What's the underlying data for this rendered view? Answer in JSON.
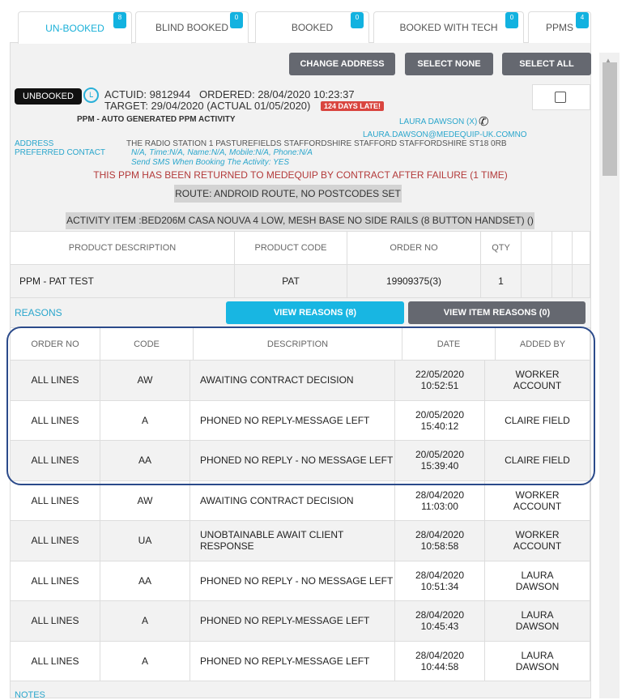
{
  "tabs": [
    {
      "label": "UN-BOOKED",
      "count": "8"
    },
    {
      "label": "BLIND BOOKED",
      "count": "0"
    },
    {
      "label": "BOOKED",
      "count": "0"
    },
    {
      "label": "BOOKED WITH TECH",
      "count": "0"
    },
    {
      "label": "PPMS",
      "count": "4"
    }
  ],
  "toolbar": {
    "change_address": "CHANGE ADDRESS",
    "select_none": "SELECT NONE",
    "select_all": "SELECT ALL"
  },
  "activity": {
    "status": "UNBOOKED",
    "line1": "ACTUID: 9812944   ORDERED: 28/04/2020 10:23:37",
    "line2": "TARGET: 29/04/2020 (ACTUAL 01/05/2020)",
    "late": "124 DAYS LATE!",
    "type": "PPM - AUTO GENERATED PPM ACTIVITY",
    "contact_name": "LAURA DAWSON (X)",
    "contact_email": "LAURA.DAWSON@MEDEQUIP-UK.COMNO",
    "address_label": "ADDRESS",
    "address": "THE RADIO STATION 1 PASTUREFIELDS STAFFORDSHIRE STAFFORD STAFFORDSHIRE ST18 0RB",
    "preferred_label": "PREFERRED CONTACT",
    "preferred": "N/A, Time:N/A, Name:N/A, Mobile:N/A, Phone:N/A",
    "sms": "Send SMS When Booking The Activity: YES",
    "warning": "THIS PPM HAS BEEN RETURNED TO MEDEQUIP BY CONTRACT AFTER FAILURE (1 TIME)",
    "route": "ROUTE: ANDROID ROUTE, NO POSTCODES SET",
    "item": "ACTIVITY ITEM :BED206M CASA NOUVA 4 LOW, MESH BASE NO SIDE RAILS (8 BUTTON HANDSET) ()"
  },
  "products": {
    "headers": [
      "PRODUCT DESCRIPTION",
      "PRODUCT CODE",
      "ORDER NO",
      "QTY"
    ],
    "row": [
      "PPM - PAT TEST",
      "PAT",
      "19909375(3)",
      "1"
    ]
  },
  "reasons": {
    "label": "REASONS",
    "view_reasons": "VIEW REASONS (8)",
    "view_item_reasons": "VIEW ITEM REASONS (0)",
    "headers": [
      "ORDER NO",
      "CODE",
      "DESCRIPTION",
      "DATE",
      "ADDED BY"
    ],
    "rows": [
      [
        "ALL LINES",
        "AW",
        "AWAITING CONTRACT DECISION",
        "22/05/2020",
        "10:52:51",
        "WORKER ACCOUNT"
      ],
      [
        "ALL LINES",
        "A",
        "PHONED NO REPLY-MESSAGE LEFT",
        "20/05/2020",
        "15:40:12",
        "CLAIRE FIELD"
      ],
      [
        "ALL LINES",
        "AA",
        "PHONED NO REPLY - NO MESSAGE LEFT",
        "20/05/2020",
        "15:39:40",
        "CLAIRE FIELD"
      ],
      [
        "ALL LINES",
        "AW",
        "AWAITING CONTRACT DECISION",
        "28/04/2020",
        "11:03:00",
        "WORKER ACCOUNT"
      ],
      [
        "ALL LINES",
        "UA",
        "UNOBTAINABLE AWAIT CLIENT RESPONSE",
        "28/04/2020",
        "10:58:58",
        "WORKER ACCOUNT"
      ],
      [
        "ALL LINES",
        "AA",
        "PHONED NO REPLY - NO MESSAGE LEFT",
        "28/04/2020",
        "10:51:34",
        "LAURA DAWSON"
      ],
      [
        "ALL LINES",
        "A",
        "PHONED NO REPLY-MESSAGE LEFT",
        "28/04/2020",
        "10:45:43",
        "LAURA DAWSON"
      ],
      [
        "ALL LINES",
        "A",
        "PHONED NO REPLY-MESSAGE LEFT",
        "28/04/2020",
        "10:44:58",
        "LAURA DAWSON"
      ]
    ]
  },
  "notes_label": "NOTES",
  "colors": {
    "accent": "#12b2e0",
    "button": "#656870",
    "highlight": "#2b4a8a",
    "late": "#e04040"
  }
}
